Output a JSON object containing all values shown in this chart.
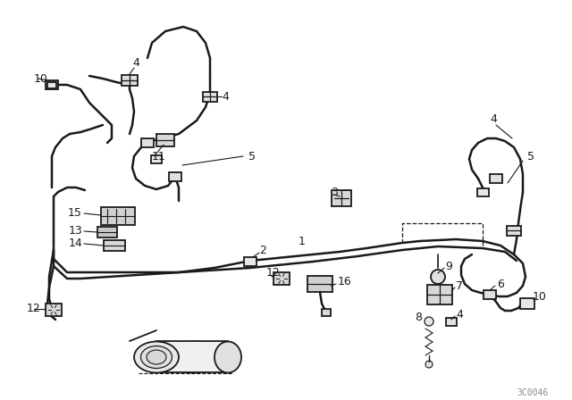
{
  "bg_color": "#ffffff",
  "line_color": "#1a1a1a",
  "part_number_text": "3C0046",
  "fig_width": 6.4,
  "fig_height": 4.48,
  "dpi": 100
}
